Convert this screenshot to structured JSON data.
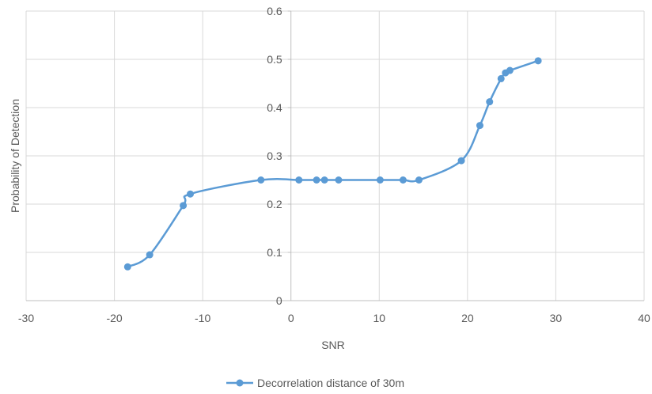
{
  "chart_data": {
    "type": "scatter",
    "title": "",
    "xlabel": "SNR",
    "ylabel": "Probability of Detection",
    "xlim": [
      -30,
      40
    ],
    "ylim": [
      0,
      0.6
    ],
    "x_ticks": [
      -30,
      -20,
      -10,
      0,
      10,
      20,
      30,
      40
    ],
    "x_tick_labels": [
      "-30",
      "-20",
      "-10",
      "0",
      "10",
      "20",
      "30",
      "40"
    ],
    "y_ticks": [
      0,
      0.1,
      0.2,
      0.3,
      0.4,
      0.5,
      0.6
    ],
    "y_tick_labels": [
      "0",
      "0.1",
      "0.2",
      "0.3",
      "0.4",
      "0.5",
      "0.6"
    ],
    "grid": true,
    "smooth_line": true,
    "legend_position": "bottom",
    "series": [
      {
        "name": "Decorrelation distance of 30m",
        "color": "#5b9bd5",
        "points": [
          {
            "x": -18.5,
            "y": 0.07
          },
          {
            "x": -16.0,
            "y": 0.095
          },
          {
            "x": -12.2,
            "y": 0.197
          },
          {
            "x": -11.4,
            "y": 0.221
          },
          {
            "x": -3.4,
            "y": 0.25
          },
          {
            "x": 0.9,
            "y": 0.25
          },
          {
            "x": 2.9,
            "y": 0.25
          },
          {
            "x": 3.8,
            "y": 0.25
          },
          {
            "x": 5.4,
            "y": 0.25
          },
          {
            "x": 10.1,
            "y": 0.25
          },
          {
            "x": 12.7,
            "y": 0.25
          },
          {
            "x": 14.5,
            "y": 0.25
          },
          {
            "x": 19.3,
            "y": 0.29
          },
          {
            "x": 21.4,
            "y": 0.363
          },
          {
            "x": 22.5,
            "y": 0.412
          },
          {
            "x": 23.8,
            "y": 0.46
          },
          {
            "x": 24.3,
            "y": 0.472
          },
          {
            "x": 24.8,
            "y": 0.477
          },
          {
            "x": 28.0,
            "y": 0.497
          }
        ]
      }
    ]
  }
}
